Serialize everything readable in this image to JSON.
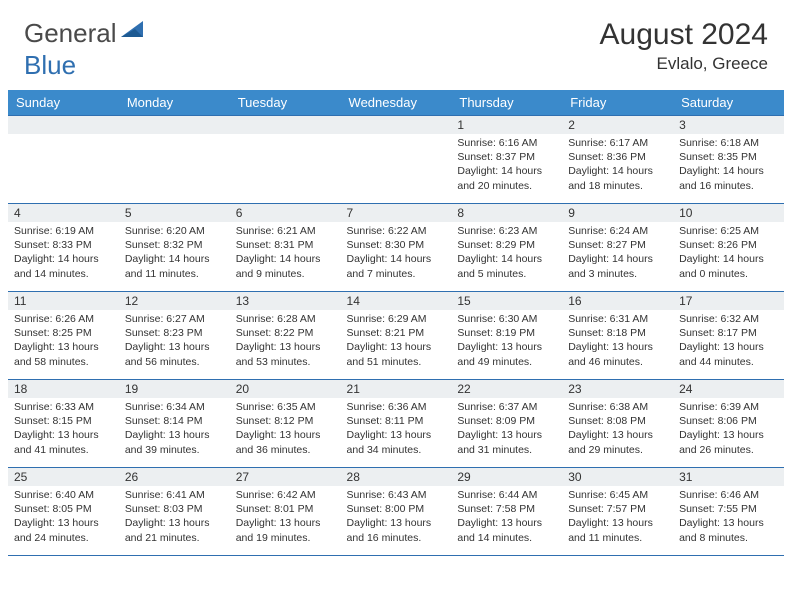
{
  "logo": {
    "text1": "General",
    "text2": "Blue"
  },
  "header": {
    "month_title": "August 2024",
    "location": "Evlalo, Greece"
  },
  "colors": {
    "header_bg": "#3b8acb",
    "border": "#2f6fb0",
    "daynum_bg": "#eceff1",
    "logo_gray": "#4a4a4a",
    "logo_blue": "#2f6fb0"
  },
  "weekdays": [
    "Sunday",
    "Monday",
    "Tuesday",
    "Wednesday",
    "Thursday",
    "Friday",
    "Saturday"
  ],
  "weeks": [
    [
      null,
      null,
      null,
      null,
      {
        "n": "1",
        "sr": "6:16 AM",
        "ss": "8:37 PM",
        "dl": "14 hours and 20 minutes."
      },
      {
        "n": "2",
        "sr": "6:17 AM",
        "ss": "8:36 PM",
        "dl": "14 hours and 18 minutes."
      },
      {
        "n": "3",
        "sr": "6:18 AM",
        "ss": "8:35 PM",
        "dl": "14 hours and 16 minutes."
      }
    ],
    [
      {
        "n": "4",
        "sr": "6:19 AM",
        "ss": "8:33 PM",
        "dl": "14 hours and 14 minutes."
      },
      {
        "n": "5",
        "sr": "6:20 AM",
        "ss": "8:32 PM",
        "dl": "14 hours and 11 minutes."
      },
      {
        "n": "6",
        "sr": "6:21 AM",
        "ss": "8:31 PM",
        "dl": "14 hours and 9 minutes."
      },
      {
        "n": "7",
        "sr": "6:22 AM",
        "ss": "8:30 PM",
        "dl": "14 hours and 7 minutes."
      },
      {
        "n": "8",
        "sr": "6:23 AM",
        "ss": "8:29 PM",
        "dl": "14 hours and 5 minutes."
      },
      {
        "n": "9",
        "sr": "6:24 AM",
        "ss": "8:27 PM",
        "dl": "14 hours and 3 minutes."
      },
      {
        "n": "10",
        "sr": "6:25 AM",
        "ss": "8:26 PM",
        "dl": "14 hours and 0 minutes."
      }
    ],
    [
      {
        "n": "11",
        "sr": "6:26 AM",
        "ss": "8:25 PM",
        "dl": "13 hours and 58 minutes."
      },
      {
        "n": "12",
        "sr": "6:27 AM",
        "ss": "8:23 PM",
        "dl": "13 hours and 56 minutes."
      },
      {
        "n": "13",
        "sr": "6:28 AM",
        "ss": "8:22 PM",
        "dl": "13 hours and 53 minutes."
      },
      {
        "n": "14",
        "sr": "6:29 AM",
        "ss": "8:21 PM",
        "dl": "13 hours and 51 minutes."
      },
      {
        "n": "15",
        "sr": "6:30 AM",
        "ss": "8:19 PM",
        "dl": "13 hours and 49 minutes."
      },
      {
        "n": "16",
        "sr": "6:31 AM",
        "ss": "8:18 PM",
        "dl": "13 hours and 46 minutes."
      },
      {
        "n": "17",
        "sr": "6:32 AM",
        "ss": "8:17 PM",
        "dl": "13 hours and 44 minutes."
      }
    ],
    [
      {
        "n": "18",
        "sr": "6:33 AM",
        "ss": "8:15 PM",
        "dl": "13 hours and 41 minutes."
      },
      {
        "n": "19",
        "sr": "6:34 AM",
        "ss": "8:14 PM",
        "dl": "13 hours and 39 minutes."
      },
      {
        "n": "20",
        "sr": "6:35 AM",
        "ss": "8:12 PM",
        "dl": "13 hours and 36 minutes."
      },
      {
        "n": "21",
        "sr": "6:36 AM",
        "ss": "8:11 PM",
        "dl": "13 hours and 34 minutes."
      },
      {
        "n": "22",
        "sr": "6:37 AM",
        "ss": "8:09 PM",
        "dl": "13 hours and 31 minutes."
      },
      {
        "n": "23",
        "sr": "6:38 AM",
        "ss": "8:08 PM",
        "dl": "13 hours and 29 minutes."
      },
      {
        "n": "24",
        "sr": "6:39 AM",
        "ss": "8:06 PM",
        "dl": "13 hours and 26 minutes."
      }
    ],
    [
      {
        "n": "25",
        "sr": "6:40 AM",
        "ss": "8:05 PM",
        "dl": "13 hours and 24 minutes."
      },
      {
        "n": "26",
        "sr": "6:41 AM",
        "ss": "8:03 PM",
        "dl": "13 hours and 21 minutes."
      },
      {
        "n": "27",
        "sr": "6:42 AM",
        "ss": "8:01 PM",
        "dl": "13 hours and 19 minutes."
      },
      {
        "n": "28",
        "sr": "6:43 AM",
        "ss": "8:00 PM",
        "dl": "13 hours and 16 minutes."
      },
      {
        "n": "29",
        "sr": "6:44 AM",
        "ss": "7:58 PM",
        "dl": "13 hours and 14 minutes."
      },
      {
        "n": "30",
        "sr": "6:45 AM",
        "ss": "7:57 PM",
        "dl": "13 hours and 11 minutes."
      },
      {
        "n": "31",
        "sr": "6:46 AM",
        "ss": "7:55 PM",
        "dl": "13 hours and 8 minutes."
      }
    ]
  ],
  "labels": {
    "sunrise": "Sunrise: ",
    "sunset": "Sunset: ",
    "daylight": "Daylight: "
  }
}
